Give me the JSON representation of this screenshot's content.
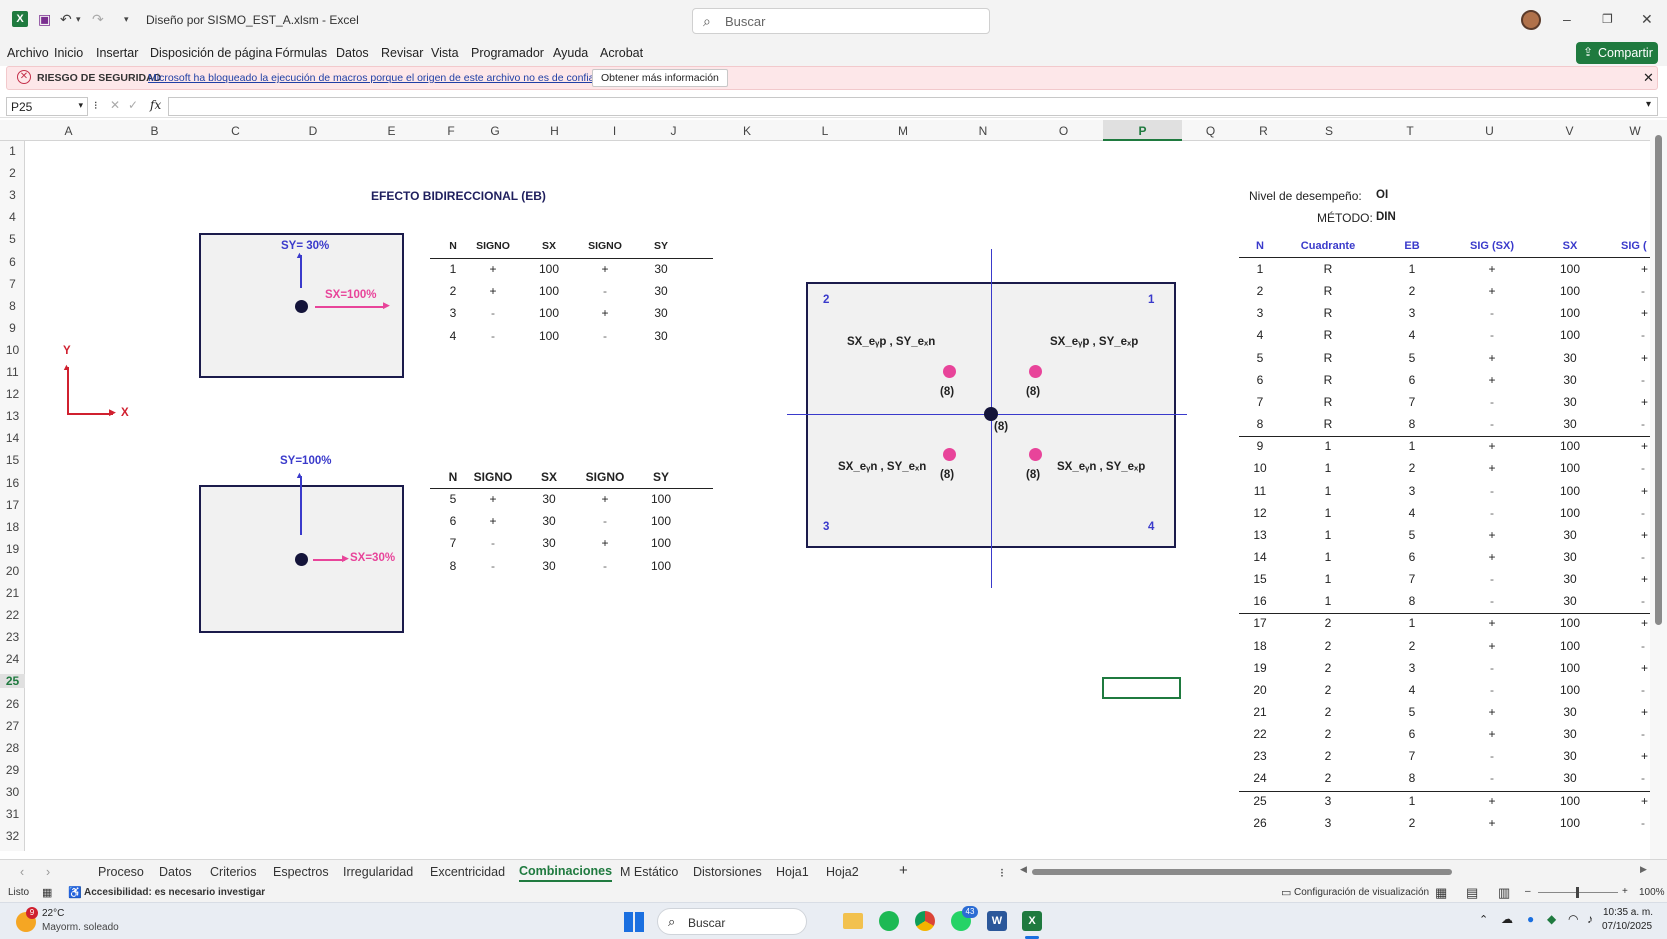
{
  "window": {
    "title": "Diseño por SISMO_EST_A.xlsm  -  Excel",
    "search_placeholder": "Buscar"
  },
  "menu": [
    "Archivo",
    "Inicio",
    "Insertar",
    "Disposición de página",
    "Fórmulas",
    "Datos",
    "Revisar",
    "Vista",
    "Programador",
    "Ayuda",
    "Acrobat"
  ],
  "share_label": "Compartir",
  "security": {
    "label": "RIESGO DE SEGURIDAD",
    "message": "Microsoft ha bloqueado la ejecución de macros porque el origen de este archivo no es de confianza.",
    "button": "Obtener más información"
  },
  "formula": {
    "name_box": "P25",
    "fx": "fx"
  },
  "columns": [
    "A",
    "B",
    "C",
    "D",
    "E",
    "F",
    "G",
    "H",
    "I",
    "J",
    "K",
    "L",
    "M",
    "N",
    "O",
    "P",
    "Q",
    "R",
    "S",
    "T",
    "U",
    "V",
    "W"
  ],
  "sheet": {
    "title": "EFECTO BIDIRECCIONAL (EB)",
    "box1": {
      "sy": "SY= 30%",
      "sx": "SX=100%"
    },
    "box2": {
      "sy": "SY=100%",
      "sx": "SX=30%"
    },
    "axis": {
      "y": "Y",
      "x": "X"
    },
    "table_headers": [
      "N",
      "SIGNO",
      "SX",
      "SIGNO",
      "SY"
    ],
    "table1": [
      [
        "1",
        "+",
        "100",
        "+",
        "30"
      ],
      [
        "2",
        "+",
        "100",
        "-",
        "30"
      ],
      [
        "3",
        "-",
        "100",
        "+",
        "30"
      ],
      [
        "4",
        "-",
        "100",
        "-",
        "30"
      ]
    ],
    "table2": [
      [
        "5",
        "+",
        "30",
        "+",
        "100"
      ],
      [
        "6",
        "+",
        "30",
        "-",
        "100"
      ],
      [
        "7",
        "-",
        "30",
        "+",
        "100"
      ],
      [
        "8",
        "-",
        "30",
        "-",
        "100"
      ]
    ],
    "quadrant": {
      "q1": "1",
      "q2": "2",
      "q3": "3",
      "q4": "4",
      "tl": "SX_eᵧp , SY_eₓn",
      "tr": "SX_eᵧp , SY_eₓp",
      "bl": "SX_eᵧn , SY_eₓn",
      "br": "SX_eᵧn , SY_eₓp",
      "count": "(8)"
    },
    "nivel_label": "Nivel de desempeño:",
    "nivel_value": "OI",
    "metodo_label": "MÉTODO:",
    "metodo_value": "DIN",
    "big_headers": [
      "N",
      "Cuadrante",
      "EB",
      "SIG (SX)",
      "SX",
      "SIG ("
    ],
    "big_rows": [
      [
        "1",
        "R",
        "1",
        "+",
        "100",
        "+"
      ],
      [
        "2",
        "R",
        "2",
        "+",
        "100",
        "-"
      ],
      [
        "3",
        "R",
        "3",
        "-",
        "100",
        "+"
      ],
      [
        "4",
        "R",
        "4",
        "-",
        "100",
        "-"
      ],
      [
        "5",
        "R",
        "5",
        "+",
        "30",
        "+"
      ],
      [
        "6",
        "R",
        "6",
        "+",
        "30",
        "-"
      ],
      [
        "7",
        "R",
        "7",
        "-",
        "30",
        "+"
      ],
      [
        "8",
        "R",
        "8",
        "-",
        "30",
        "-"
      ],
      [
        "9",
        "1",
        "1",
        "+",
        "100",
        "+"
      ],
      [
        "10",
        "1",
        "2",
        "+",
        "100",
        "-"
      ],
      [
        "11",
        "1",
        "3",
        "-",
        "100",
        "+"
      ],
      [
        "12",
        "1",
        "4",
        "-",
        "100",
        "-"
      ],
      [
        "13",
        "1",
        "5",
        "+",
        "30",
        "+"
      ],
      [
        "14",
        "1",
        "6",
        "+",
        "30",
        "-"
      ],
      [
        "15",
        "1",
        "7",
        "-",
        "30",
        "+"
      ],
      [
        "16",
        "1",
        "8",
        "-",
        "30",
        "-"
      ],
      [
        "17",
        "2",
        "1",
        "+",
        "100",
        "+"
      ],
      [
        "18",
        "2",
        "2",
        "+",
        "100",
        "-"
      ],
      [
        "19",
        "2",
        "3",
        "-",
        "100",
        "+"
      ],
      [
        "20",
        "2",
        "4",
        "-",
        "100",
        "-"
      ],
      [
        "21",
        "2",
        "5",
        "+",
        "30",
        "+"
      ],
      [
        "22",
        "2",
        "6",
        "+",
        "30",
        "-"
      ],
      [
        "23",
        "2",
        "7",
        "-",
        "30",
        "+"
      ],
      [
        "24",
        "2",
        "8",
        "-",
        "30",
        "-"
      ],
      [
        "25",
        "3",
        "1",
        "+",
        "100",
        "+"
      ],
      [
        "26",
        "3",
        "2",
        "+",
        "100",
        "-"
      ]
    ]
  },
  "tabs": [
    "Proceso",
    "Datos",
    "Criterios",
    "Espectros",
    "Irregularidad",
    "Excentricidad",
    "Combinaciones",
    "M Estático",
    "Distorsiones",
    "Hoja1",
    "Hoja2"
  ],
  "active_tab": "Combinaciones",
  "status": {
    "ready": "Listo",
    "accessibility": "Accesibilidad: es necesario investigar",
    "view_settings": "Configuración de visualización",
    "zoom": "100%"
  },
  "taskbar": {
    "temp": "22°C",
    "weather": "Mayorm. soleado",
    "search": "Buscar",
    "time": "10:35 a. m.",
    "date": "07/10/2025",
    "badge": "43",
    "weather_badge": "9"
  },
  "colors": {
    "navy": "#1b1b4b",
    "pink": "#e8449a",
    "blue": "#3a3acb",
    "red": "#d0202f",
    "excel_green": "#1f7a3f"
  }
}
